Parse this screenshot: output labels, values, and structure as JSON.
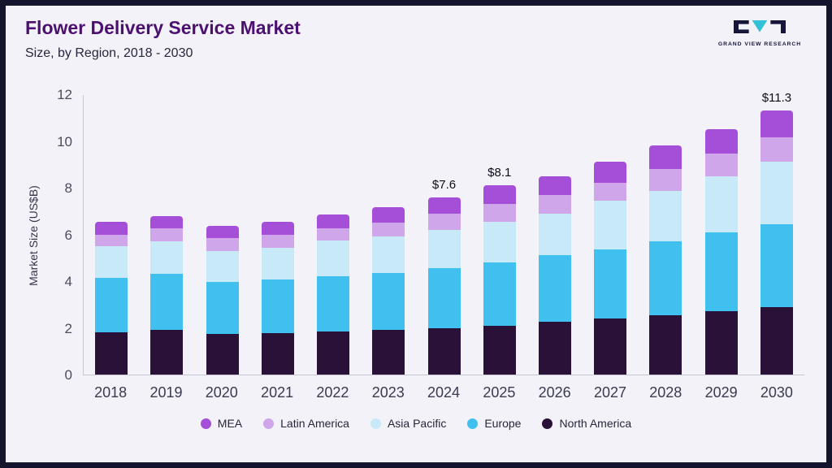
{
  "header": {
    "title": "Flower Delivery Service Market",
    "subtitle": "Size, by Region, 2018 - 2030",
    "logo_text": "GRAND VIEW RESEARCH"
  },
  "colors": {
    "frame_border": "#15152e",
    "background": "#f3f2f8",
    "title": "#4c1170",
    "logo_teal": "#33c1d8",
    "logo_navy": "#16163a"
  },
  "chart_data": {
    "type": "bar",
    "stacked": true,
    "title": "Flower Delivery Service Market Size, by Region, 2018 - 2030",
    "xlabel": "",
    "ylabel": "Market Size (US$B)",
    "ylim": [
      0,
      12
    ],
    "yticks": [
      0,
      2,
      4,
      6,
      8,
      10,
      12
    ],
    "grid": false,
    "legend_position": "bottom",
    "categories": [
      "2018",
      "2019",
      "2020",
      "2021",
      "2022",
      "2023",
      "2024",
      "2025",
      "2026",
      "2027",
      "2028",
      "2029",
      "2030"
    ],
    "series": [
      {
        "name": "North America",
        "color": "#2a1138",
        "values": [
          1.8,
          1.9,
          1.75,
          1.78,
          1.85,
          1.92,
          2.0,
          2.1,
          2.25,
          2.4,
          2.55,
          2.7,
          2.9
        ]
      },
      {
        "name": "Europe",
        "color": "#3fc0ee",
        "values": [
          2.35,
          2.4,
          2.2,
          2.3,
          2.35,
          2.43,
          2.55,
          2.7,
          2.85,
          2.95,
          3.15,
          3.4,
          3.55
        ]
      },
      {
        "name": "Asia Pacific",
        "color": "#c8e9f8",
        "values": [
          1.35,
          1.4,
          1.35,
          1.35,
          1.55,
          1.55,
          1.65,
          1.75,
          1.8,
          2.1,
          2.15,
          2.4,
          2.65
        ]
      },
      {
        "name": "Latin America",
        "color": "#cfa6e9",
        "values": [
          0.5,
          0.55,
          0.55,
          0.57,
          0.5,
          0.6,
          0.7,
          0.75,
          0.8,
          0.75,
          0.95,
          0.95,
          1.05
        ]
      },
      {
        "name": "MEA",
        "color": "#a54fd9",
        "values": [
          0.55,
          0.55,
          0.5,
          0.55,
          0.6,
          0.65,
          0.7,
          0.8,
          0.8,
          0.9,
          1.0,
          1.05,
          1.15
        ]
      }
    ],
    "totals": [
      6.55,
      6.8,
      6.35,
      6.55,
      6.85,
      7.15,
      7.6,
      8.1,
      8.5,
      9.1,
      9.8,
      10.5,
      11.3
    ],
    "annotations": [
      {
        "category": "2024",
        "label": "$7.6"
      },
      {
        "category": "2025",
        "label": "$8.1"
      },
      {
        "category": "2030",
        "label": "$11.3"
      }
    ],
    "legend": [
      "MEA",
      "Latin America",
      "Asia Pacific",
      "Europe",
      "North America"
    ]
  }
}
